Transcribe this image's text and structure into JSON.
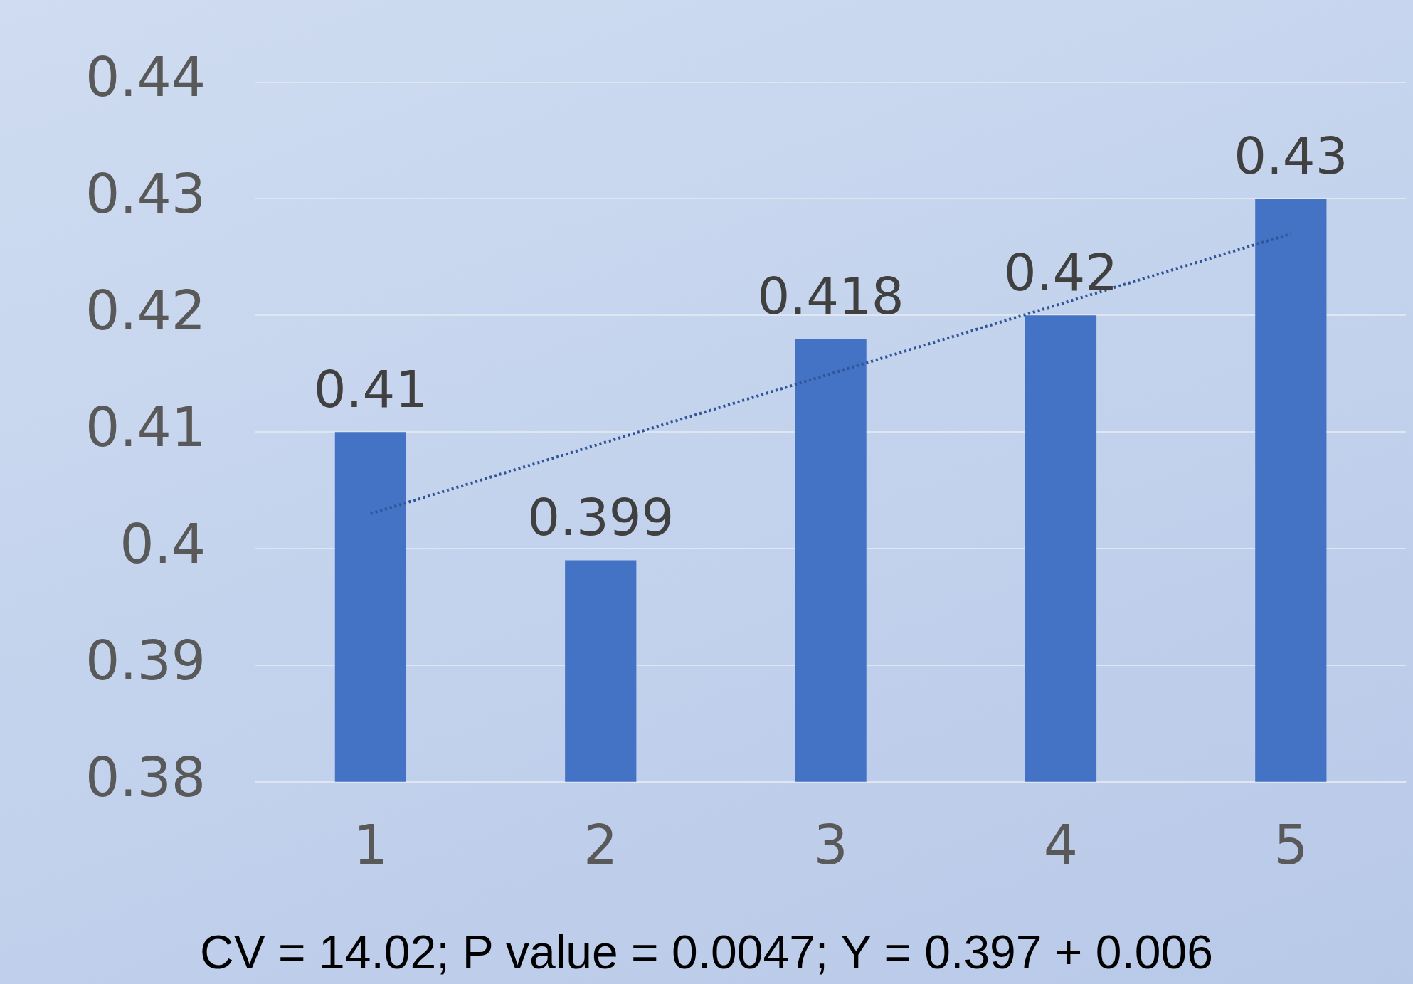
{
  "chart_data": {
    "type": "bar",
    "categories": [
      "1",
      "2",
      "3",
      "4",
      "5"
    ],
    "series": [
      {
        "color": "#4472c4",
        "values": [
          0.41,
          0.399,
          0.418,
          0.42,
          0.43
        ],
        "value_labels": [
          "0.41",
          "0.399",
          "0.418",
          "0.42",
          "0.43"
        ]
      },
      {
        "type": "line",
        "color": "#2f5597",
        "x": [
          "1",
          "5"
        ],
        "values": [
          0.403,
          0.427
        ],
        "line_style": "dotted"
      }
    ],
    "ylim": [
      0.38,
      0.44
    ],
    "yticks": [
      0.38,
      0.39,
      0.4,
      0.41,
      0.42,
      0.43,
      0.44
    ],
    "grid": "y",
    "legend": false,
    "annotations": [
      "CV = 14.02; P value = 0.0047; Y = 0.397 + 0.006"
    ]
  }
}
